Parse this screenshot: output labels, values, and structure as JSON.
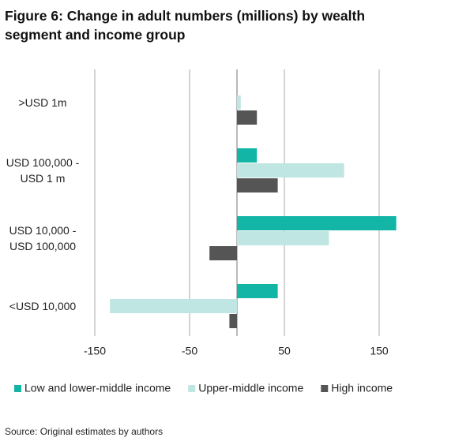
{
  "chart_data": {
    "type": "hbar",
    "title": "Figure 6: Change in adult numbers (millions) by wealth segment and income group",
    "categories": [
      ">USD 1m",
      "USD 100,000 -\nUSD 1 m",
      "USD 10,000 -\nUSD 100,000",
      "<USD 10,000"
    ],
    "series": [
      {
        "name": "Low and lower-middle income",
        "color": "#12b5a6",
        "values": [
          0.5,
          21,
          168,
          43
        ]
      },
      {
        "name": "Upper-middle income",
        "color": "#bfe6e2",
        "values": [
          4,
          113,
          97,
          -134
        ]
      },
      {
        "name": "High income",
        "color": "#555555",
        "values": [
          21,
          43,
          -29,
          -8
        ]
      }
    ],
    "xlim": [
      -165,
      185
    ],
    "xticks": [
      -150,
      -50,
      50,
      150
    ],
    "grid": true,
    "source": "Source: Original estimates by authors"
  }
}
